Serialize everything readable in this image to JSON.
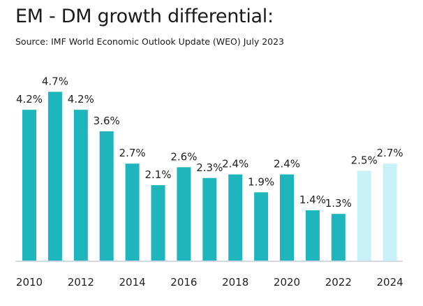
{
  "chart_data": {
    "type": "bar",
    "title": "EM - DM growth differential:",
    "subtitle": "Source: IMF World Economic Outlook Update (WEO) July 2023",
    "categories": [
      "2010",
      "2011",
      "2012",
      "2013",
      "2014",
      "2015",
      "2016",
      "2017",
      "2018",
      "2019",
      "2020",
      "2021",
      "2022",
      "2023",
      "2024"
    ],
    "values": [
      4.2,
      4.7,
      4.2,
      3.6,
      2.7,
      2.1,
      2.6,
      2.3,
      2.4,
      1.9,
      2.4,
      1.4,
      1.3,
      2.5,
      2.7
    ],
    "data_labels": [
      "4.2%",
      "4.7%",
      "4.2%",
      "3.6%",
      "2.7%",
      "2.1%",
      "2.6%",
      "2.3%",
      "2.4%",
      "1.9%",
      "2.4%",
      "1.4%",
      "1.3%",
      "2.5%",
      "2.7%"
    ],
    "projected": [
      false,
      false,
      false,
      false,
      false,
      false,
      false,
      false,
      false,
      false,
      false,
      false,
      false,
      true,
      true
    ],
    "x_tick_labels": [
      "2010",
      "2012",
      "2014",
      "2016",
      "2018",
      "2020",
      "2022",
      "2024"
    ],
    "xlabel": "",
    "ylabel": "",
    "ylim": [
      0,
      5
    ],
    "grid": false,
    "colors": {
      "actual": "#1fb5bd",
      "projected": "#c8f1f7",
      "axis": "#d5d9e3"
    }
  }
}
